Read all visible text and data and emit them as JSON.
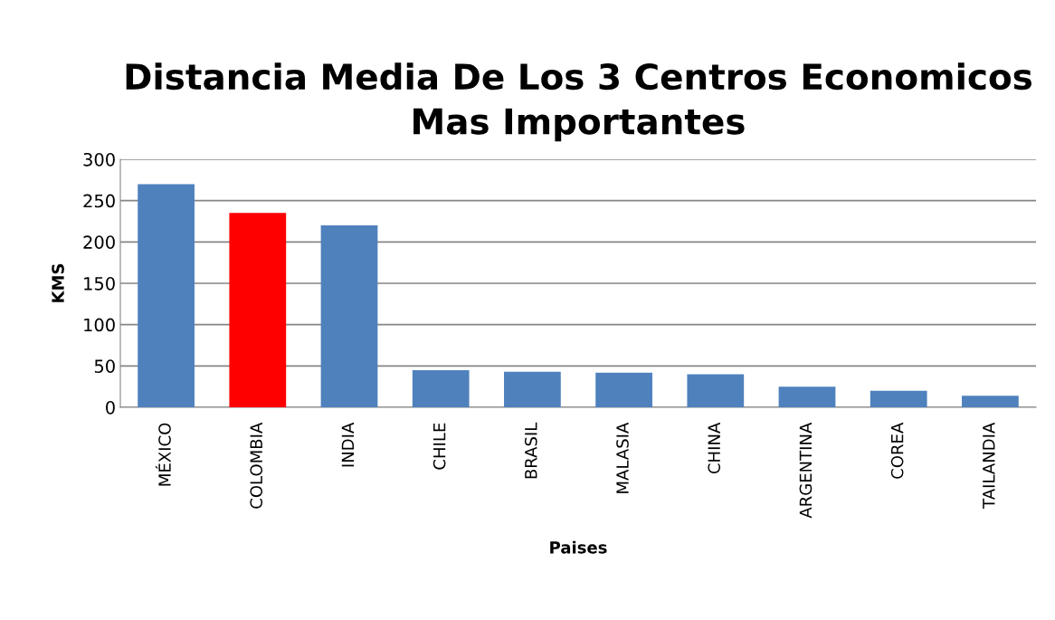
{
  "chart_data": {
    "type": "bar",
    "title": "Distancia Media De Los 3 Centros Economicos\nMas Importantes",
    "xlabel": "Paises",
    "ylabel": "KMS",
    "categories": [
      "MÉXICO",
      "COLOMBIA",
      "INDIA",
      "CHILE",
      "BRASIL",
      "MALASIA",
      "CHINA",
      "ARGENTINA",
      "COREA",
      "TAILANDIA"
    ],
    "values": [
      270,
      235,
      220,
      45,
      43,
      42,
      40,
      25,
      20,
      14
    ],
    "colors": [
      "#4f81bd",
      "#ff0000",
      "#4f81bd",
      "#4f81bd",
      "#4f81bd",
      "#4f81bd",
      "#4f81bd",
      "#4f81bd",
      "#4f81bd",
      "#4f81bd"
    ],
    "ylim": [
      0,
      300
    ],
    "yticks": [
      0,
      50,
      100,
      150,
      200,
      250,
      300
    ],
    "grid": "y",
    "legend": false
  }
}
